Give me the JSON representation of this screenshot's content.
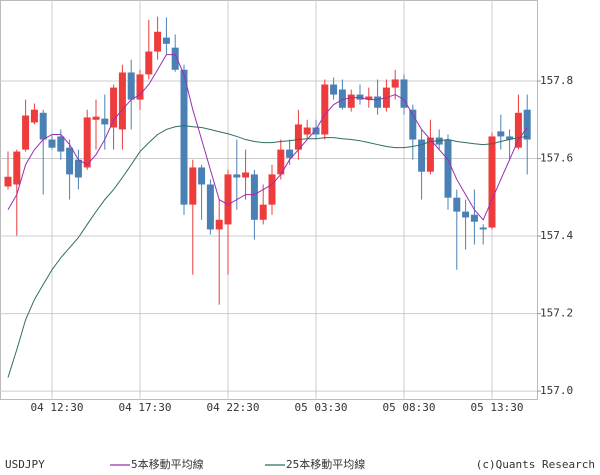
{
  "chart_data": {
    "type": "candlestick",
    "symbol": "USDJPY",
    "credit": "(c)Quants Research",
    "categories": [
      null,
      null,
      null,
      null,
      null,
      "04 12:30",
      null,
      null,
      null,
      null,
      null,
      null,
      null,
      null,
      null,
      "04 17:30",
      null,
      null,
      null,
      null,
      null,
      null,
      null,
      null,
      null,
      "04 22:30",
      null,
      null,
      null,
      null,
      null,
      null,
      null,
      null,
      null,
      "05 03:30",
      null,
      null,
      null,
      null,
      null,
      null,
      null,
      null,
      null,
      "05 08:30",
      null,
      null,
      null,
      null,
      null,
      null,
      null,
      null,
      null,
      "05 13:30",
      null,
      null,
      null,
      null
    ],
    "open": [
      157.528,
      157.533,
      157.623,
      157.693,
      157.718,
      157.649,
      157.657,
      157.628,
      157.597,
      157.577,
      157.7,
      157.703,
      157.68,
      157.675,
      157.822,
      157.752,
      157.817,
      157.876,
      157.912,
      157.886,
      157.829,
      157.481,
      157.577,
      157.533,
      157.417,
      157.43,
      157.559,
      157.551,
      157.559,
      157.442,
      157.481,
      157.559,
      157.623,
      157.623,
      157.662,
      157.68,
      157.662,
      157.791,
      157.778,
      157.731,
      157.765,
      157.752,
      157.76,
      157.731,
      157.783,
      157.804,
      157.726,
      157.649,
      157.566,
      157.654,
      157.649,
      157.499,
      157.463,
      157.455,
      157.422,
      157.422,
      157.67,
      157.657,
      157.628,
      157.726
    ],
    "high": [
      157.618,
      157.623,
      157.752,
      157.742,
      157.726,
      157.662,
      157.675,
      157.649,
      157.623,
      157.726,
      157.752,
      157.765,
      157.791,
      157.842,
      157.855,
      157.829,
      157.958,
      157.966,
      157.964,
      157.92,
      157.842,
      157.597,
      157.584,
      157.546,
      157.494,
      157.571,
      157.649,
      157.623,
      157.571,
      157.533,
      157.584,
      157.649,
      157.649,
      157.726,
      157.7,
      157.7,
      157.804,
      157.809,
      157.804,
      157.778,
      157.791,
      157.783,
      157.804,
      157.804,
      157.829,
      157.817,
      157.739,
      157.675,
      157.7,
      157.675,
      157.662,
      157.52,
      157.494,
      157.52,
      157.43,
      157.667,
      157.713,
      157.675,
      157.765,
      157.765
    ],
    "low": [
      157.52,
      157.401,
      157.618,
      157.688,
      157.507,
      157.623,
      157.597,
      157.494,
      157.52,
      157.571,
      157.623,
      157.623,
      157.623,
      157.623,
      157.675,
      157.726,
      157.804,
      157.855,
      157.868,
      157.824,
      157.455,
      157.3,
      157.442,
      157.404,
      157.223,
      157.3,
      157.468,
      157.494,
      157.391,
      157.43,
      157.455,
      157.546,
      157.584,
      157.597,
      157.649,
      157.649,
      157.649,
      157.752,
      157.726,
      157.721,
      157.739,
      157.731,
      157.713,
      157.721,
      157.752,
      157.713,
      157.597,
      157.494,
      157.559,
      157.623,
      157.468,
      157.313,
      157.365,
      157.378,
      157.378,
      157.417,
      157.623,
      157.597,
      157.623,
      157.559
    ],
    "close": [
      157.553,
      157.618,
      157.711,
      157.726,
      157.649,
      157.628,
      157.618,
      157.559,
      157.551,
      157.706,
      157.708,
      157.688,
      157.783,
      157.822,
      157.752,
      157.817,
      157.876,
      157.927,
      157.896,
      157.829,
      157.481,
      157.577,
      157.533,
      157.417,
      157.442,
      157.559,
      157.551,
      157.564,
      157.442,
      157.481,
      157.559,
      157.623,
      157.602,
      157.688,
      157.68,
      157.662,
      157.791,
      157.765,
      157.731,
      157.765,
      157.752,
      157.76,
      157.731,
      157.783,
      157.804,
      157.731,
      157.649,
      157.566,
      157.654,
      157.636,
      157.499,
      157.463,
      157.448,
      157.437,
      157.417,
      157.657,
      157.657,
      157.649,
      157.718,
      157.649
    ],
    "up_color": "#ee3b3b",
    "down_color": "#4a80b4",
    "series": [
      {
        "name": "5本移動平均線",
        "color": "#9a2fb0",
        "values": [
          157.468,
          157.507,
          157.584,
          157.623,
          157.649,
          157.662,
          157.662,
          157.636,
          157.597,
          157.584,
          157.61,
          157.649,
          157.7,
          157.726,
          157.752,
          157.765,
          157.791,
          157.829,
          157.868,
          157.868,
          157.817,
          157.726,
          157.649,
          157.571,
          157.494,
          157.481,
          157.494,
          157.507,
          157.507,
          157.52,
          157.533,
          157.559,
          157.597,
          157.623,
          157.649,
          157.675,
          157.713,
          157.739,
          157.752,
          157.757,
          157.757,
          157.752,
          157.752,
          157.757,
          157.765,
          157.752,
          157.713,
          157.675,
          157.649,
          157.623,
          157.597,
          157.546,
          157.507,
          157.468,
          157.442,
          157.494,
          157.546,
          157.597,
          157.649,
          157.68
        ]
      },
      {
        "name": "25本移動平均線",
        "color": "#2f6e5e",
        "values": [
          157.035,
          157.107,
          157.184,
          157.236,
          157.275,
          157.313,
          157.344,
          157.37,
          157.396,
          157.43,
          157.463,
          157.494,
          157.52,
          157.551,
          157.584,
          157.618,
          157.641,
          157.662,
          157.675,
          157.682,
          157.685,
          157.682,
          157.68,
          157.675,
          157.669,
          157.664,
          157.657,
          157.649,
          157.644,
          157.641,
          157.641,
          157.644,
          157.646,
          157.649,
          157.651,
          157.651,
          157.654,
          157.654,
          157.651,
          157.649,
          157.646,
          157.641,
          157.636,
          157.631,
          157.628,
          157.628,
          157.631,
          157.636,
          157.644,
          157.646,
          157.649,
          157.644,
          157.641,
          157.638,
          157.636,
          157.638,
          157.644,
          157.649,
          157.654,
          157.657
        ]
      }
    ],
    "ylim": [
      156.977,
      158.009
    ],
    "yticks": [
      {
        "value": 157.0,
        "label": "157.0"
      },
      157.2,
      157.4,
      157.6,
      157.8
    ],
    "grid": true
  }
}
